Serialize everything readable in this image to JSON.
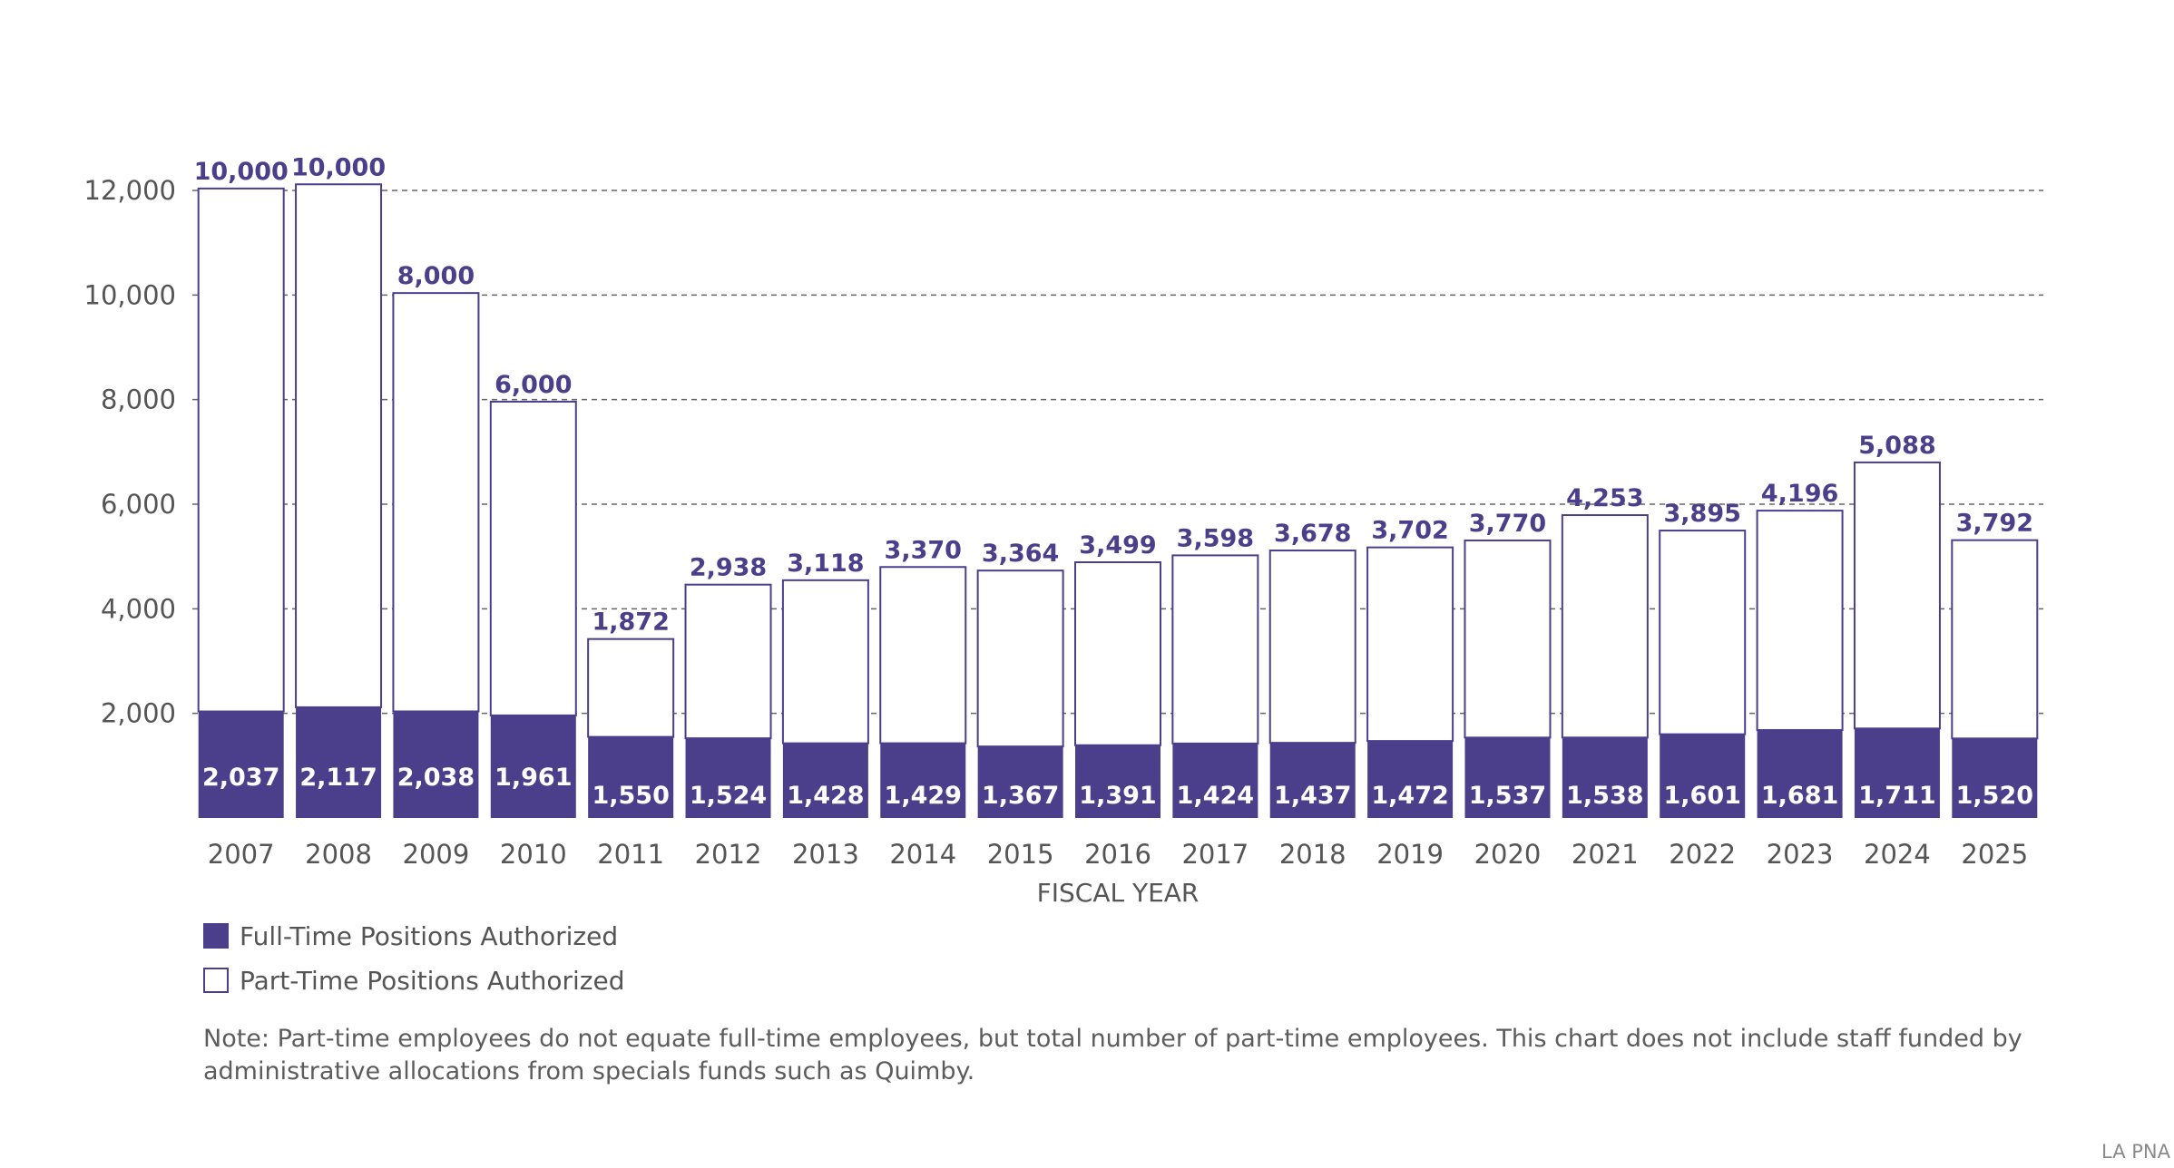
{
  "chart_data": {
    "type": "bar",
    "stacked": true,
    "categories": [
      "2007",
      "2008",
      "2009",
      "2010",
      "2011",
      "2012",
      "2013",
      "2014",
      "2015",
      "2016",
      "2017",
      "2018",
      "2019",
      "2020",
      "2021",
      "2022",
      "2023",
      "2024",
      "2025"
    ],
    "series": [
      {
        "name": "Full-Time Positions Authorized",
        "values": [
          2037,
          2117,
          2038,
          1961,
          1550,
          1524,
          1428,
          1429,
          1367,
          1391,
          1424,
          1437,
          1472,
          1537,
          1538,
          1601,
          1681,
          1711,
          1520
        ],
        "labels": [
          "2,037",
          "2,117",
          "2,038",
          "1,961",
          "1,550",
          "1,524",
          "1,428",
          "1,429",
          "1,367",
          "1,391",
          "1,424",
          "1,437",
          "1,472",
          "1,537",
          "1,538",
          "1,601",
          "1,681",
          "1,711",
          "1,520"
        ],
        "color": "#4b3f8c"
      },
      {
        "name": "Part-Time Positions Authorized",
        "values": [
          10000,
          10000,
          8000,
          6000,
          1872,
          2938,
          3118,
          3370,
          3364,
          3499,
          3598,
          3678,
          3702,
          3770,
          4253,
          3895,
          4196,
          5088,
          3792
        ],
        "labels": [
          "10,000",
          "10,000",
          "8,000",
          "6,000",
          "1,872",
          "2,938",
          "3,118",
          "3,370",
          "3,364",
          "3,499",
          "3,598",
          "3,678",
          "3,702",
          "3,770",
          "4,253",
          "3,895",
          "4,196",
          "5,088",
          "3,792"
        ],
        "color": "#ffffff"
      }
    ],
    "xlabel": "FISCAL YEAR",
    "ylabel": "",
    "ylim": [
      0,
      12000
    ],
    "yticks": [
      2000,
      4000,
      6000,
      8000,
      10000,
      12000
    ],
    "ytick_labels": [
      "2,000",
      "4,000",
      "6,000",
      "8,000",
      "10,000",
      "12,000"
    ],
    "grid": "horizontal dashed",
    "legend_position": "bottom-left"
  },
  "colors": {
    "full_time": "#4b3f8c",
    "part_time": "#ffffff",
    "bar_outline": "#4b3f8c",
    "label_total": "#4b3f8c",
    "axis_text": "#555555",
    "grid": "#666666"
  },
  "legend": {
    "full_time_label": "Full-Time Positions Authorized",
    "part_time_label": "Part-Time Positions Authorized"
  },
  "note": "Note: Part-time employees do not equate full-time employees, but total number of part-time employees. This chart does not include staff funded by administrative allocations from specials funds such as Quimby.",
  "source": "LA PNA"
}
